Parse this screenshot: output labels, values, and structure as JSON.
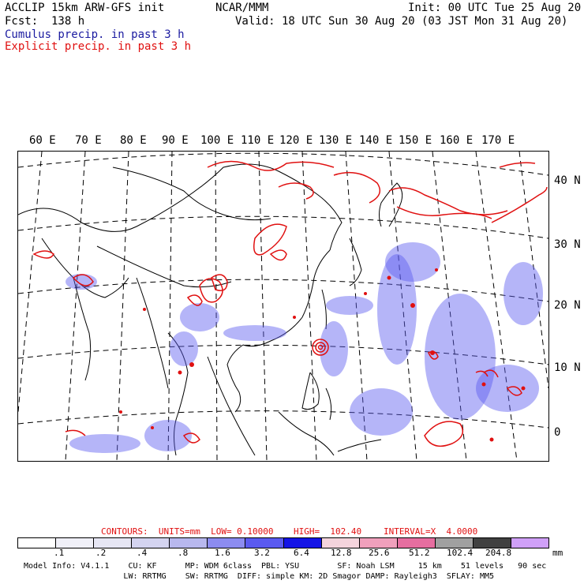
{
  "header": {
    "line1_left": "ACCLIP 15km ARW-GFS init",
    "line1_mid": "NCAR/MMM",
    "line1_right": "Init: 00 UTC Tue 25 Aug 20",
    "line2_left": "Fcst:  138 h",
    "line2_right": "Valid: 18 UTC Sun 30 Aug 20 (03 JST Mon 31 Aug 20)",
    "line3": "Cumulus precip. in past 3 h",
    "line4": "Explicit precip. in past 3 h"
  },
  "axes": {
    "lon_labels": [
      "60 E",
      "70 E",
      "80 E",
      "90 E",
      "100 E",
      "110 E",
      "120 E",
      "130 E",
      "140 E",
      "150 E",
      "160 E",
      "170 E"
    ],
    "lat_labels": [
      "40 N",
      "30 N",
      "20 N",
      "10 N",
      "0"
    ]
  },
  "contour_info": {
    "contours": "CONTOURS:  UNITS=mm  LOW= 0.10000",
    "high": "HIGH=  102.40",
    "interval": "INTERVAL=X  4.0000"
  },
  "legend": {
    "unit": "mm",
    "labels": [
      ".1",
      ".2",
      ".4",
      ".8",
      "1.6",
      "3.2",
      "6.4",
      "12.8",
      "25.6",
      "51.2",
      "102.4",
      "204.8"
    ],
    "colors": [
      "#ffffff",
      "#f0f0f8",
      "#e6e6f4",
      "#d4d4f0",
      "#b8b8ee",
      "#8c8cf0",
      "#5a5af0",
      "#1414e6",
      "#f4d4dc",
      "#f0a0bc",
      "#e66ea0",
      "#a0a0a0",
      "#404040",
      "#d0a0f8"
    ]
  },
  "model_info": {
    "line1": "Model Info: V4.1.1    CU: KF      MP: WDM 6class  PBL: YSU        SF: Noah LSM     15 km    51 levels   90 sec",
    "line2": "                     LW: RRTMG    SW: RRTMG  DIFF: simple KM: 2D Smagor DAMP: Rayleigh3  SFLAY: MM5"
  }
}
